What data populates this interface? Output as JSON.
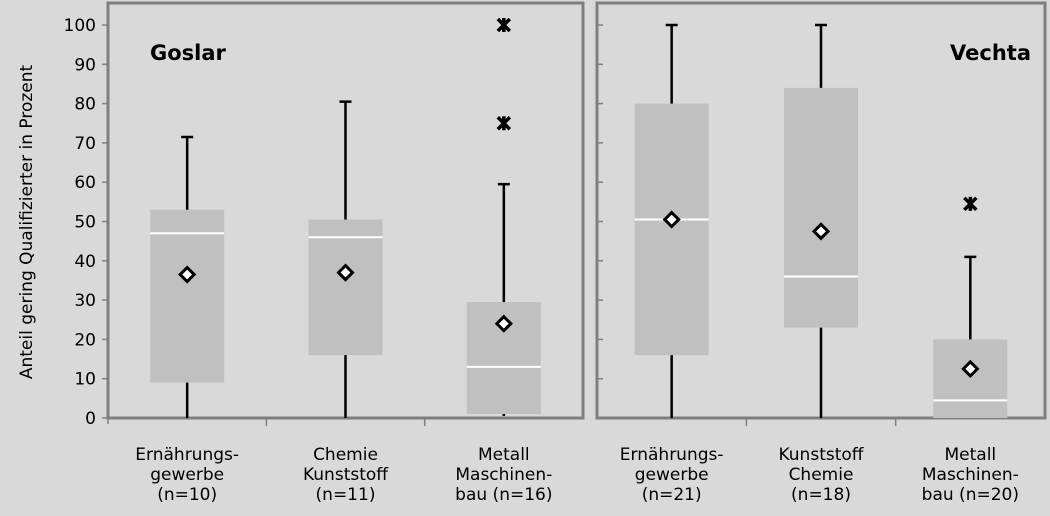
{
  "chart_data": {
    "type": "box",
    "ylabel": "Anteil gering Qualifizierter in Prozent",
    "ylim": [
      0,
      100
    ],
    "yticks": [
      0,
      10,
      20,
      30,
      40,
      50,
      60,
      70,
      80,
      90,
      100
    ],
    "grid": false,
    "colors": {
      "box": "#c0c0c0",
      "median": "#ffffff",
      "whisker": "#000000",
      "frame": "#7f7f7f",
      "background": "#d9d9d9"
    },
    "panels": [
      {
        "title": "Goslar",
        "title_position": "top-left",
        "groups": [
          {
            "label": [
              "Ernährungs-",
              "gewerbe",
              "(n=10)"
            ],
            "min": 0,
            "q1": 9,
            "median": 47,
            "q3": 53,
            "max": 71.5,
            "mean": 36.5,
            "outliers": []
          },
          {
            "label": [
              "Chemie",
              "Kunststoff",
              "(n=11)"
            ],
            "min": 0,
            "q1": 16,
            "median": 46,
            "q3": 50.5,
            "max": 80.5,
            "mean": 37,
            "outliers": []
          },
          {
            "label": [
              "Metall",
              "Maschinen-",
              "bau (n=16)"
            ],
            "min": 0.5,
            "q1": 1,
            "median": 13,
            "q3": 29.5,
            "max": 59.5,
            "mean": 24,
            "outliers": [
              75,
              100
            ]
          }
        ]
      },
      {
        "title": "Vechta",
        "title_position": "top-right",
        "groups": [
          {
            "label": [
              "Ernährungs-",
              "gewerbe",
              "(n=21)"
            ],
            "min": 0,
            "q1": 16,
            "median": 50.5,
            "q3": 80,
            "max": 100,
            "mean": 50.5,
            "outliers": []
          },
          {
            "label": [
              "Kunststoff",
              "Chemie",
              "(n=18)"
            ],
            "min": 0,
            "q1": 23,
            "median": 36,
            "q3": 84,
            "max": 100,
            "mean": 47.5,
            "outliers": []
          },
          {
            "label": [
              "Metall",
              "Maschinen-",
              "bau (n=20)"
            ],
            "min": 0,
            "q1": 0,
            "median": 4.5,
            "q3": 20,
            "max": 41,
            "mean": 12.5,
            "outliers": [
              54.5
            ]
          }
        ]
      }
    ]
  }
}
